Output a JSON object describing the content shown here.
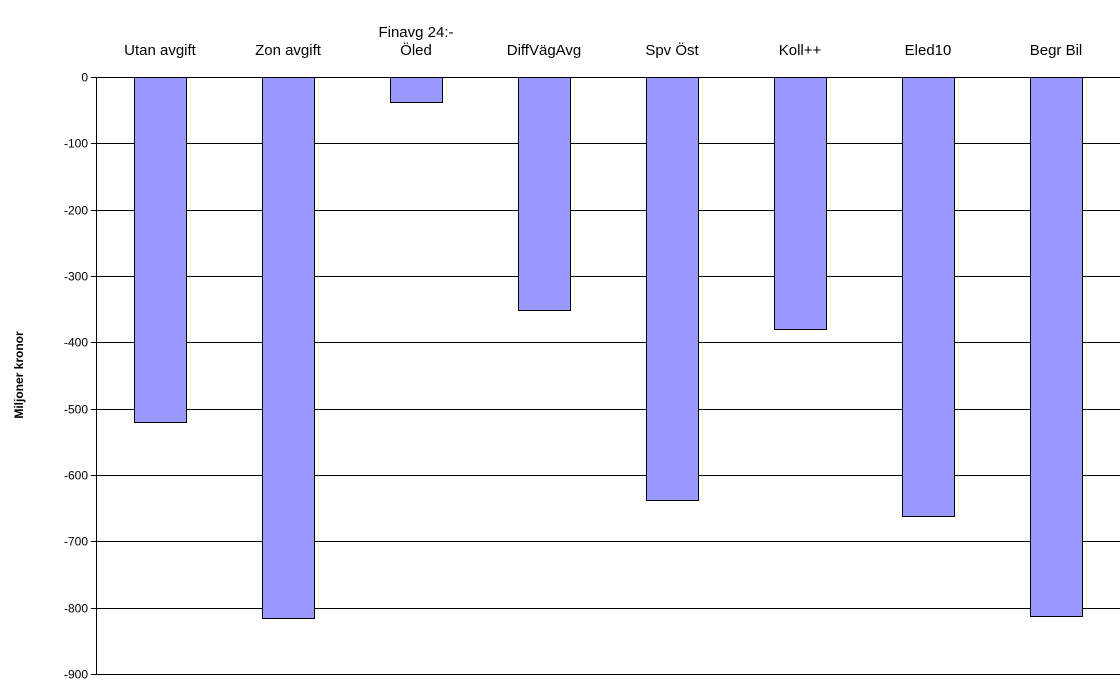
{
  "chart_data": {
    "type": "bar",
    "categories": [
      [
        "Utan avgift"
      ],
      [
        "Zon avgift"
      ],
      [
        "Finavg 24:-",
        "Öled"
      ],
      [
        "DiffVägAvg"
      ],
      [
        "Spv Öst"
      ],
      [
        "Koll++"
      ],
      [
        "Eled10"
      ],
      [
        "Begr Bil"
      ]
    ],
    "values": [
      -520,
      -815,
      -38,
      -352,
      -638,
      -380,
      -662,
      -813
    ],
    "ylabel": "Miljoner kronor",
    "ylim": [
      -900,
      0
    ],
    "yticks": [
      0,
      -100,
      -200,
      -300,
      -400,
      -500,
      -600,
      -700,
      -800,
      -900
    ],
    "ytick_labels": [
      "0",
      "-100",
      "-200",
      "-300",
      "-400",
      "-500",
      "-600",
      "-700",
      "-800",
      "-900"
    ],
    "grid": true,
    "legend": "none",
    "colors": {
      "bar_fill": "#9999ff",
      "bar_stroke": "#000000",
      "grid": "#000000"
    }
  }
}
